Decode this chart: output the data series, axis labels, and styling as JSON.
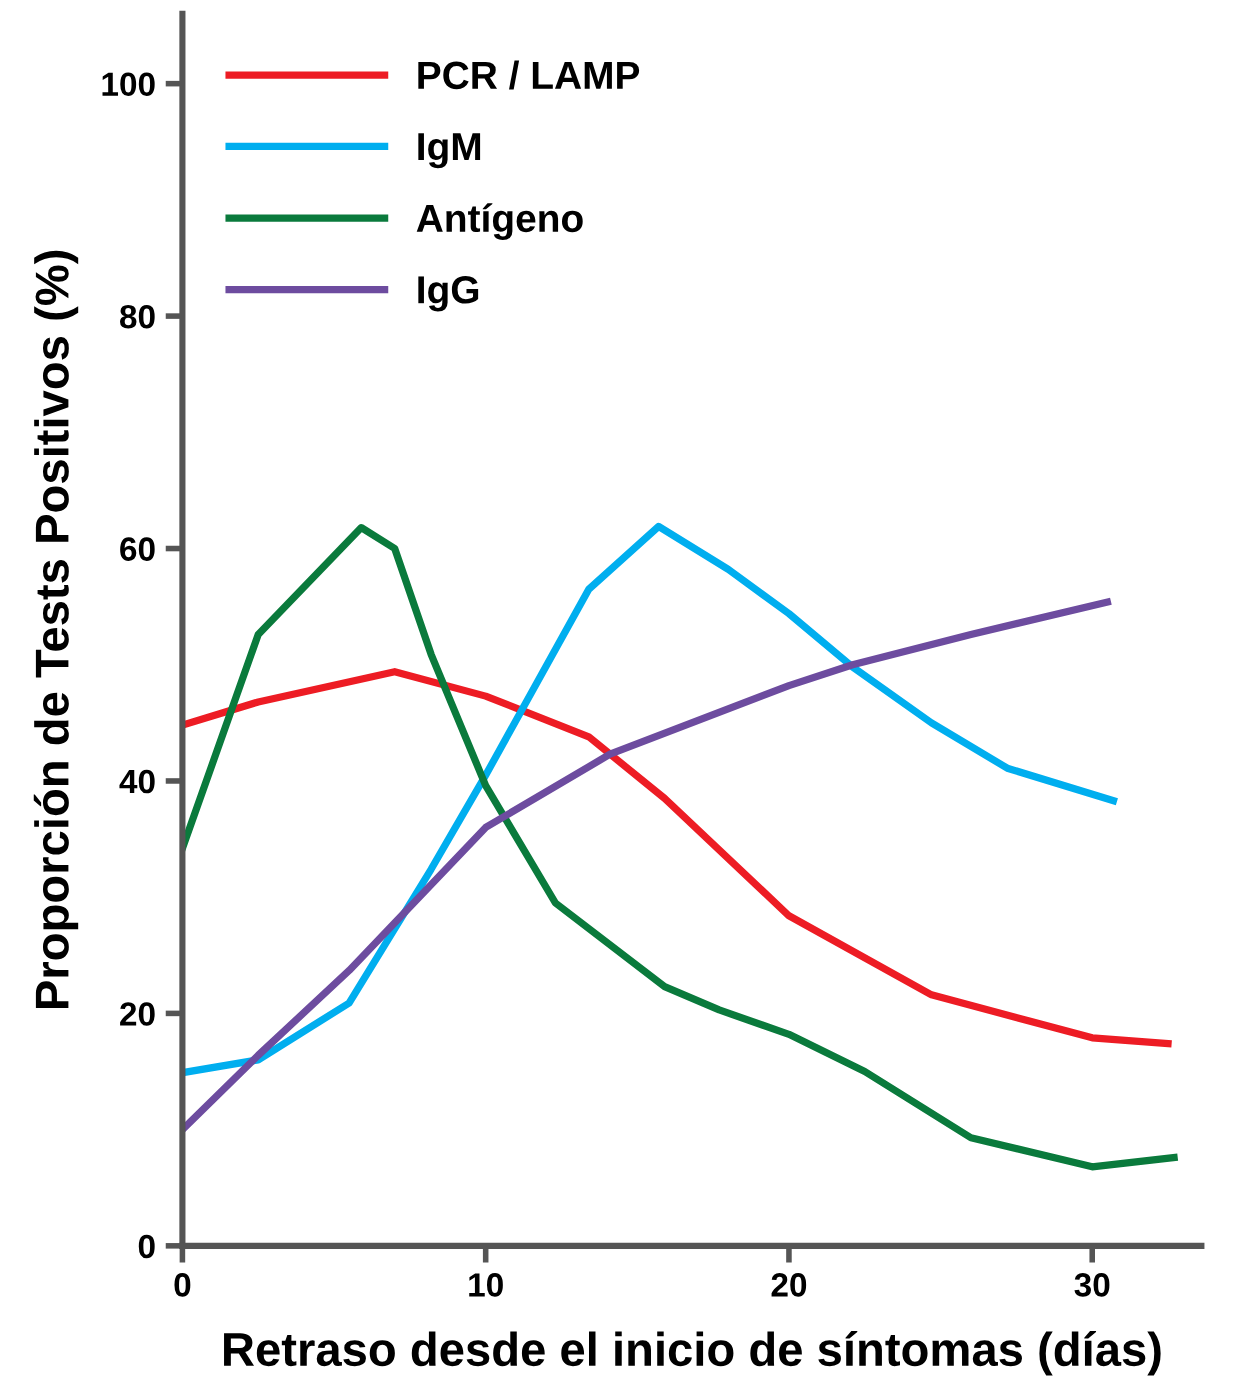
{
  "chart_data": {
    "type": "line",
    "xlabel": "Retraso desde el inicio de síntomas (días)",
    "ylabel": "Proporción de Tests Positivos (%)",
    "xlim": [
      0,
      33.6
    ],
    "xticks": [
      0,
      10,
      20,
      30
    ],
    "ylim": [
      0,
      106
    ],
    "yticks": [
      0,
      20,
      40,
      60,
      80,
      100
    ],
    "grid": false,
    "legend": "top left",
    "marker": "none",
    "line_style": "solid",
    "series": [
      {
        "name": "PCR / LAMP",
        "color": "#ed1c24",
        "x": [
          0,
          2.5,
          7.0,
          10,
          13.4,
          15.9,
          20,
          24.7,
          30,
          32.5
        ],
        "values": [
          44.8,
          46.8,
          49.4,
          47.3,
          43.8,
          38.5,
          28.4,
          21.6,
          17.9,
          17.4
        ]
      },
      {
        "name": "IgM",
        "color": "#00aeef",
        "x": [
          0,
          2.5,
          5.5,
          8.2,
          10,
          13.4,
          15.7,
          18,
          20,
          22.1,
          24.7,
          27.2,
          30.7
        ],
        "values": [
          14.9,
          16.0,
          20.9,
          32.4,
          40.5,
          56.5,
          61.9,
          58.2,
          54.4,
          49.8,
          45.0,
          41.1,
          38.3
        ]
      },
      {
        "name": "Antígeno",
        "color": "#0a7a3c",
        "x": [
          0,
          2.5,
          5.9,
          7.0,
          8.2,
          10,
          12.3,
          15.9,
          17.7,
          20,
          22.5,
          26,
          30,
          32.7
        ],
        "values": [
          34.2,
          52.6,
          61.8,
          60,
          50.9,
          39.6,
          29.5,
          22.3,
          20.3,
          18.2,
          15.0,
          9.3,
          6.8,
          7.6
        ]
      },
      {
        "name": "IgG",
        "color": "#6d4c9f",
        "x": [
          0,
          2.5,
          5.5,
          10,
          14.1,
          20,
          22.1,
          26,
          30.5
        ],
        "values": [
          10.0,
          16.4,
          23.7,
          36.0,
          42.3,
          48.2,
          50.0,
          52.6,
          55.4
        ]
      }
    ]
  }
}
